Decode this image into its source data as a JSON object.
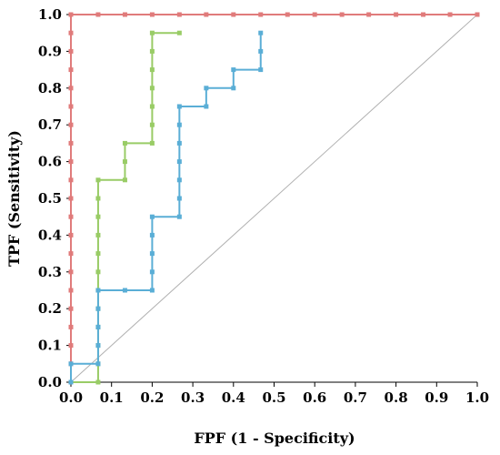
{
  "chart_data": {
    "type": "line",
    "xlabel": "FPF (1 - Specificity)",
    "ylabel": "TPF (Sensitivity)",
    "xlim": [
      0,
      1
    ],
    "ylim": [
      0,
      1
    ],
    "x_ticks": [
      "0.0",
      "0.1",
      "0.2",
      "0.3",
      "0.4",
      "0.5",
      "0.6",
      "0.7",
      "0.8",
      "0.9",
      "1.0"
    ],
    "y_ticks": [
      "0.0",
      "0.1",
      "0.2",
      "0.3",
      "0.4",
      "0.5",
      "0.6",
      "0.7",
      "0.8",
      "0.9",
      "1.0"
    ],
    "grid": false,
    "legend": "none",
    "reference_line": {
      "x": [
        0,
        1
      ],
      "y": [
        0,
        1
      ],
      "color": "#b0b0b0"
    },
    "series": [
      {
        "color": "#e07b7b",
        "points": [
          [
            0,
            0
          ],
          [
            0,
            0.05
          ],
          [
            0,
            0.1
          ],
          [
            0,
            0.15
          ],
          [
            0,
            0.2
          ],
          [
            0,
            0.25
          ],
          [
            0,
            0.3
          ],
          [
            0,
            0.35
          ],
          [
            0,
            0.4
          ],
          [
            0,
            0.45
          ],
          [
            0,
            0.5
          ],
          [
            0,
            0.55
          ],
          [
            0,
            0.6
          ],
          [
            0,
            0.65
          ],
          [
            0,
            0.7
          ],
          [
            0,
            0.75
          ],
          [
            0,
            0.8
          ],
          [
            0,
            0.85
          ],
          [
            0,
            0.9
          ],
          [
            0,
            0.95
          ],
          [
            0,
            1.0
          ],
          [
            0.067,
            1.0
          ],
          [
            0.133,
            1.0
          ],
          [
            0.2,
            1.0
          ],
          [
            0.267,
            1.0
          ],
          [
            0.333,
            1.0
          ],
          [
            0.4,
            1.0
          ],
          [
            0.467,
            1.0
          ],
          [
            0.533,
            1.0
          ],
          [
            0.6,
            1.0
          ],
          [
            0.667,
            1.0
          ],
          [
            0.733,
            1.0
          ],
          [
            0.8,
            1.0
          ],
          [
            0.867,
            1.0
          ],
          [
            0.933,
            1.0
          ],
          [
            1.0,
            1.0
          ]
        ]
      },
      {
        "color": "#99cc66",
        "points": [
          [
            0,
            0
          ],
          [
            0.067,
            0
          ],
          [
            0.067,
            0.05
          ],
          [
            0.067,
            0.1
          ],
          [
            0.067,
            0.15
          ],
          [
            0.067,
            0.2
          ],
          [
            0.067,
            0.25
          ],
          [
            0.067,
            0.3
          ],
          [
            0.067,
            0.35
          ],
          [
            0.067,
            0.4
          ],
          [
            0.067,
            0.45
          ],
          [
            0.067,
            0.5
          ],
          [
            0.067,
            0.55
          ],
          [
            0.133,
            0.55
          ],
          [
            0.133,
            0.6
          ],
          [
            0.133,
            0.65
          ],
          [
            0.2,
            0.65
          ],
          [
            0.2,
            0.7
          ],
          [
            0.2,
            0.75
          ],
          [
            0.2,
            0.8
          ],
          [
            0.2,
            0.85
          ],
          [
            0.2,
            0.9
          ],
          [
            0.2,
            0.95
          ],
          [
            0.267,
            0.95
          ]
        ]
      },
      {
        "color": "#5aaed6",
        "points": [
          [
            0,
            0
          ],
          [
            0,
            0.05
          ],
          [
            0.067,
            0.05
          ],
          [
            0.067,
            0.1
          ],
          [
            0.067,
            0.15
          ],
          [
            0.067,
            0.2
          ],
          [
            0.067,
            0.25
          ],
          [
            0.133,
            0.25
          ],
          [
            0.2,
            0.25
          ],
          [
            0.2,
            0.3
          ],
          [
            0.2,
            0.35
          ],
          [
            0.2,
            0.4
          ],
          [
            0.2,
            0.45
          ],
          [
            0.267,
            0.45
          ],
          [
            0.267,
            0.5
          ],
          [
            0.267,
            0.55
          ],
          [
            0.267,
            0.6
          ],
          [
            0.267,
            0.65
          ],
          [
            0.267,
            0.7
          ],
          [
            0.267,
            0.75
          ],
          [
            0.333,
            0.75
          ],
          [
            0.333,
            0.8
          ],
          [
            0.4,
            0.8
          ],
          [
            0.4,
            0.85
          ],
          [
            0.467,
            0.85
          ],
          [
            0.467,
            0.9
          ],
          [
            0.467,
            0.95
          ]
        ]
      }
    ]
  }
}
